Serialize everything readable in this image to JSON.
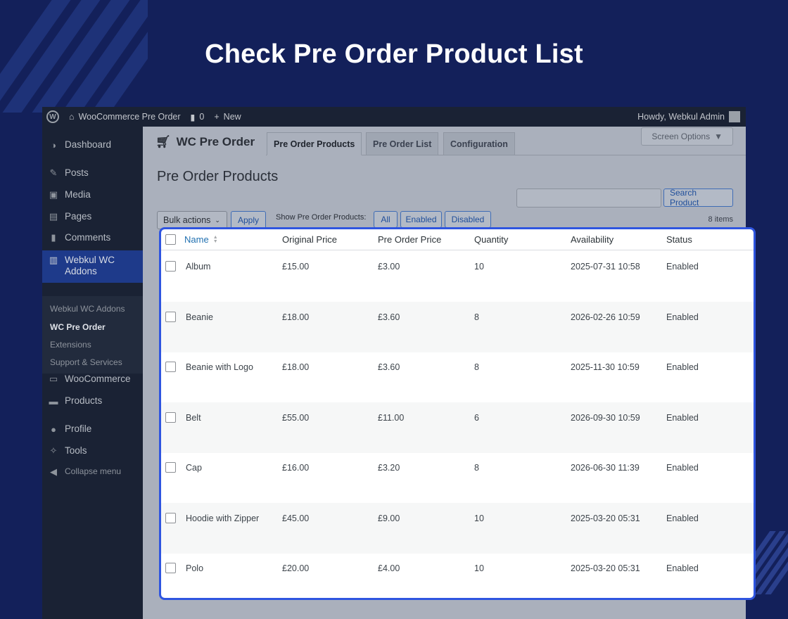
{
  "headline": "Check Pre Order Product List",
  "adminbar": {
    "site_name": "WooCommerce Pre Order",
    "comments_count": "0",
    "new_label": "New",
    "howdy": "Howdy, Webkul Admin"
  },
  "sidebar": {
    "items": [
      {
        "label": "Dashboard",
        "icon": "dashboard-icon"
      },
      {
        "label": "Posts",
        "icon": "pin-icon"
      },
      {
        "label": "Media",
        "icon": "media-icon"
      },
      {
        "label": "Pages",
        "icon": "pages-icon"
      },
      {
        "label": "Comments",
        "icon": "comments-icon"
      },
      {
        "label": "Webkul WC Addons",
        "icon": "bag-icon"
      },
      {
        "label": "WooCommerce",
        "icon": "woo-icon"
      },
      {
        "label": "Products",
        "icon": "archive-icon"
      },
      {
        "label": "Profile",
        "icon": "user-icon"
      },
      {
        "label": "Tools",
        "icon": "wrench-icon"
      },
      {
        "label": "Collapse menu",
        "icon": "collapse-icon"
      }
    ],
    "submenu": [
      "Webkul WC Addons",
      "WC Pre Order",
      "Extensions",
      "Support & Services"
    ]
  },
  "header": {
    "title": "WC Pre Order",
    "tabs": [
      "Pre Order Products",
      "Pre Order List",
      "Configuration"
    ],
    "screen_options": "Screen Options"
  },
  "page_title": "Pre Order Products",
  "search_button": "Search Product",
  "bulk_actions": "Bulk actions",
  "apply": "Apply",
  "filter": {
    "label": "Show Pre Order Products:",
    "options": [
      "All",
      "Enabled",
      "Disabled"
    ]
  },
  "items_count": "8 items",
  "table": {
    "columns": [
      "Name",
      "Original Price",
      "Pre Order Price",
      "Quantity",
      "Availability",
      "Status"
    ],
    "rows": [
      [
        "Album",
        "£15.00",
        "£3.00",
        "10",
        "2025-07-31 10:58",
        "Enabled"
      ],
      [
        "Beanie",
        "£18.00",
        "£3.60",
        "8",
        "2026-02-26 10:59",
        "Enabled"
      ],
      [
        "Beanie with Logo",
        "£18.00",
        "£3.60",
        "8",
        "2025-11-30 10:59",
        "Enabled"
      ],
      [
        "Belt",
        "£55.00",
        "£11.00",
        "6",
        "2026-09-30 10:59",
        "Enabled"
      ],
      [
        "Cap",
        "£16.00",
        "£3.20",
        "8",
        "2026-06-30 11:39",
        "Enabled"
      ],
      [
        "Hoodie with Zipper",
        "£45.00",
        "£9.00",
        "10",
        "2025-03-20 05:31",
        "Enabled"
      ],
      [
        "Polo",
        "£20.00",
        "£4.00",
        "10",
        "2025-03-20 05:31",
        "Enabled"
      ]
    ]
  }
}
